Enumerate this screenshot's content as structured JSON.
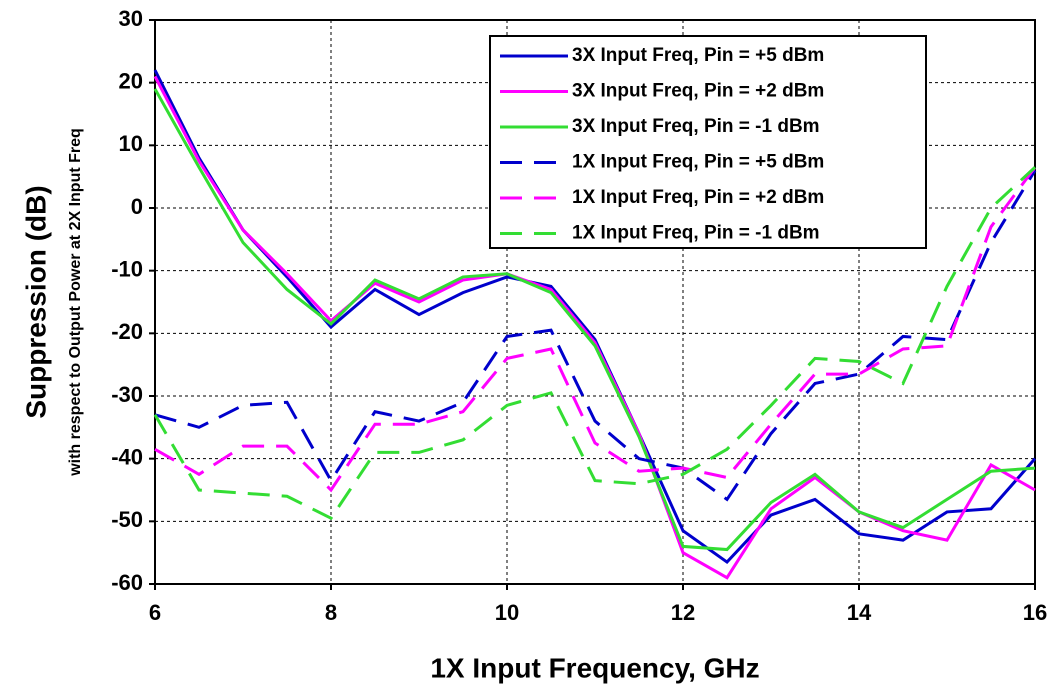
{
  "chart_data": {
    "type": "line",
    "x_label": "1X Input Frequency, GHz",
    "y_label": "Suppression (dB)",
    "y_sublabel": "with respect to Output Power at 2X Input Freq",
    "x": [
      6,
      6.5,
      7,
      7.5,
      8,
      8.5,
      9,
      9.5,
      10,
      10.5,
      11,
      11.5,
      12,
      12.5,
      13,
      13.5,
      14,
      14.5,
      15,
      15.5,
      16
    ],
    "series": [
      {
        "name": "3X Input Freq, Pin = +5 dBm",
        "color": "#0000cc",
        "dashed": false,
        "values": [
          22,
          8,
          -3.5,
          -11,
          -19,
          -13,
          -17,
          -13.5,
          -11,
          -12.5,
          -21,
          -36,
          -51.5,
          -56.5,
          -49,
          -46.5,
          -52,
          -53,
          -48.5,
          -48,
          -40
        ]
      },
      {
        "name": "3X Input Freq, Pin = +2 dBm",
        "color": "#ff00ff",
        "dashed": false,
        "values": [
          21,
          7.5,
          -3.5,
          -10.5,
          -18,
          -12,
          -15,
          -11.5,
          -10.5,
          -13,
          -21.5,
          -36,
          -55,
          -59,
          -48,
          -43,
          -48.5,
          -51.5,
          -53,
          -41,
          -45
        ]
      },
      {
        "name": "3X Input Freq, Pin = -1 dBm",
        "color": "#33dd33",
        "dashed": false,
        "values": [
          19,
          6.5,
          -5.5,
          -13,
          -18.5,
          -11.5,
          -14.5,
          -11,
          -10.5,
          -13.5,
          -22,
          -36.5,
          -54,
          -54.5,
          -47,
          -42.5,
          -48.5,
          -51,
          -46.5,
          -42,
          -41.5
        ]
      },
      {
        "name": "1X Input Freq, Pin = +5 dBm",
        "color": "#0000cc",
        "dashed": true,
        "values": [
          -33,
          -35,
          -31.5,
          -31,
          -43.5,
          -32.5,
          -34,
          -31,
          -20.5,
          -19.5,
          -34,
          -40,
          -41.5,
          -46.5,
          -36,
          -28,
          -26.5,
          -20.5,
          -21,
          -5.5,
          6
        ]
      },
      {
        "name": "1X Input Freq, Pin = +2 dBm",
        "color": "#ff00ff",
        "dashed": true,
        "values": [
          -38.5,
          -42.5,
          -38,
          -38,
          -45,
          -34.5,
          -34.5,
          -32.5,
          -24,
          -22.5,
          -37.5,
          -42,
          -41.5,
          -43,
          -34.5,
          -26.5,
          -26.5,
          -22.5,
          -22,
          -3,
          6.5
        ]
      },
      {
        "name": "1X Input Freq, Pin = -1 dBm",
        "color": "#33dd33",
        "dashed": true,
        "values": [
          -33,
          -45,
          -45.5,
          -46,
          -49.5,
          -39,
          -39,
          -37,
          -31.5,
          -29.5,
          -43.5,
          -44,
          -42.5,
          -38.5,
          -31.5,
          -24,
          -24.5,
          -28,
          -12.5,
          0,
          6.5
        ]
      }
    ],
    "xlim": [
      6,
      16
    ],
    "xticks": [
      6,
      8,
      10,
      12,
      14,
      16
    ],
    "ylim": [
      -60,
      30
    ],
    "yticks": [
      -60,
      -50,
      -40,
      -30,
      -20,
      -10,
      0,
      10,
      20,
      30
    ],
    "grid": true
  }
}
